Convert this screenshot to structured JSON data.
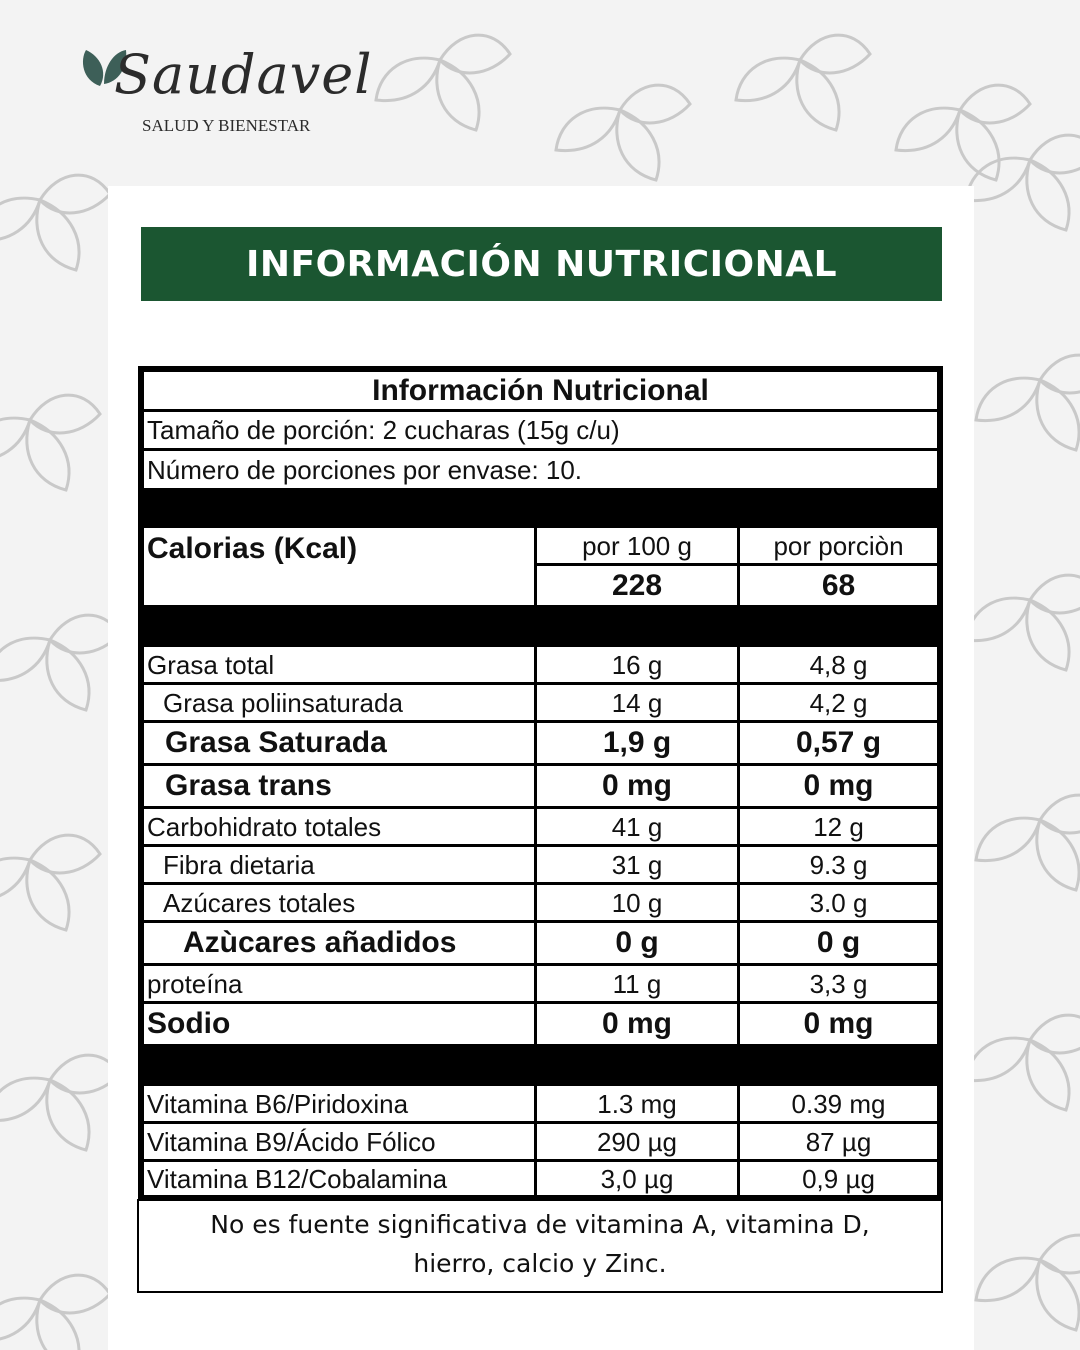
{
  "brand": {
    "name": "Saudavel",
    "tagline": "SALUD Y BIENESTAR"
  },
  "banner_title": "INFORMACIÓN NUTRICIONAL",
  "table": {
    "title": "Información Nutricional",
    "serving_size": "Tamaño de porción: 2 cucharas (15g c/u)",
    "servings_per_container": "Número de porciones por envase: 10.",
    "calories": {
      "label": "Calorias (Kcal)",
      "col1_header": "por 100 g",
      "col2_header": "por porciòn",
      "per_100g": "228",
      "per_serving": "68"
    },
    "nutrients": [
      {
        "label": "Grasa total",
        "per_100g": "16 g",
        "per_serving": "4,8 g"
      },
      {
        "label": "Grasa poliinsaturada",
        "per_100g": "14 g",
        "per_serving": "4,2 g"
      },
      {
        "label": "Grasa Saturada",
        "per_100g": "1,9 g",
        "per_serving": "0,57 g"
      },
      {
        "label": "Grasa trans",
        "per_100g": "0 mg",
        "per_serving": "0 mg"
      },
      {
        "label": "Carbohidrato totales",
        "per_100g": "41 g",
        "per_serving": "12 g"
      },
      {
        "label": "Fibra dietaria",
        "per_100g": "31 g",
        "per_serving": "9.3 g"
      },
      {
        "label": "Azúcares totales",
        "per_100g": "10 g",
        "per_serving": "3.0 g"
      },
      {
        "label": "Azùcares añadidos",
        "per_100g": "0 g",
        "per_serving": "0 g"
      },
      {
        "label": "proteína",
        "per_100g": "11 g",
        "per_serving": "3,3 g"
      },
      {
        "label": "Sodio",
        "per_100g": "0 mg",
        "per_serving": "0 mg"
      }
    ],
    "vitamins": [
      {
        "label": "Vitamina B6/Piridoxina",
        "per_100g": "1.3 mg",
        "per_serving": "0.39 mg"
      },
      {
        "label": "Vitamina B9/Ácido Fólico",
        "per_100g": "290 µg",
        "per_serving": "87 µg"
      },
      {
        "label": "Vitamina B12/Cobalamina",
        "per_100g": "3,0 µg",
        "per_serving": "0,9 µg"
      }
    ]
  },
  "footnote": {
    "line1": "No es fuente significativa de vitamina A, vitamina D,",
    "line2": "hierro, calcio y Zinc."
  },
  "colors": {
    "banner": "#1b5631",
    "logo_leaf": "#3d5f58",
    "background": "#f3f3f3"
  },
  "icons": [
    "leaf-pattern",
    "logo-leaf-icon"
  ]
}
